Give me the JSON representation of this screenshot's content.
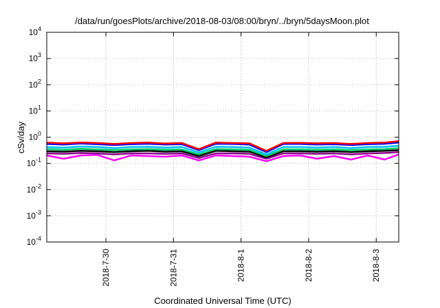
{
  "chart_data": {
    "type": "line",
    "title": "/data/run/goesPlots/archive/2018-08-03/08:00/bryn/../bryn/5daysMoon.plot",
    "xlabel": "Coordinated Universal Time (UTC)",
    "ylabel": "cSv/day",
    "yscale": "log",
    "ylim": [
      0.0001,
      10000
    ],
    "xlim": [
      "2018-07-29T03:00",
      "2018-08-03T08:00"
    ],
    "grid": true,
    "y_ticks": [
      {
        "value": 0.0001,
        "base": "10",
        "exp": "-4"
      },
      {
        "value": 0.001,
        "base": "10",
        "exp": "-3"
      },
      {
        "value": 0.01,
        "base": "10",
        "exp": "-2"
      },
      {
        "value": 0.1,
        "base": "10",
        "exp": "-1"
      },
      {
        "value": 1,
        "base": "10",
        "exp": "0"
      },
      {
        "value": 10,
        "base": "10",
        "exp": "1"
      },
      {
        "value": 100,
        "base": "10",
        "exp": "2"
      },
      {
        "value": 1000,
        "base": "10",
        "exp": "3"
      },
      {
        "value": 10000,
        "base": "10",
        "exp": "4"
      }
    ],
    "x_ticks": [
      {
        "value": "2018-07-30T00:00",
        "label": "2018-7-30"
      },
      {
        "value": "2018-07-31T00:00",
        "label": "2018-7-31"
      },
      {
        "value": "2018-08-01T00:00",
        "label": "2018-8-1"
      },
      {
        "value": "2018-08-02T00:00",
        "label": "2018-8-2"
      },
      {
        "value": "2018-08-03T00:00",
        "label": "2018-8-3"
      }
    ],
    "x": [
      "2018-07-29T03:00",
      "2018-07-29T09:00",
      "2018-07-29T15:00",
      "2018-07-29T21:00",
      "2018-07-30T03:00",
      "2018-07-30T09:00",
      "2018-07-30T15:00",
      "2018-07-30T21:00",
      "2018-07-31T03:00",
      "2018-07-31T09:00",
      "2018-07-31T15:00",
      "2018-07-31T21:00",
      "2018-08-01T03:00",
      "2018-08-01T09:00",
      "2018-08-01T15:00",
      "2018-08-01T21:00",
      "2018-08-02T03:00",
      "2018-08-02T09:00",
      "2018-08-02T15:00",
      "2018-08-02T21:00",
      "2018-08-03T03:00",
      "2018-08-03T08:00"
    ],
    "series": [
      {
        "color": "#ff0000",
        "values": [
          0.62,
          0.58,
          0.63,
          0.6,
          0.55,
          0.6,
          0.62,
          0.57,
          0.6,
          0.35,
          0.62,
          0.6,
          0.58,
          0.3,
          0.6,
          0.61,
          0.58,
          0.6,
          0.55,
          0.6,
          0.62,
          0.7
        ]
      },
      {
        "color": "#0000ff",
        "values": [
          0.55,
          0.52,
          0.57,
          0.54,
          0.5,
          0.54,
          0.56,
          0.52,
          0.54,
          0.32,
          0.56,
          0.55,
          0.52,
          0.27,
          0.55,
          0.55,
          0.52,
          0.54,
          0.5,
          0.54,
          0.56,
          0.62
        ]
      },
      {
        "color": "#00bfff",
        "values": [
          0.42,
          0.4,
          0.44,
          0.42,
          0.38,
          0.42,
          0.43,
          0.4,
          0.42,
          0.26,
          0.43,
          0.42,
          0.4,
          0.22,
          0.42,
          0.42,
          0.4,
          0.42,
          0.38,
          0.42,
          0.43,
          0.47
        ]
      },
      {
        "color": "#00cc66",
        "values": [
          0.35,
          0.33,
          0.36,
          0.34,
          0.32,
          0.34,
          0.35,
          0.33,
          0.34,
          0.22,
          0.35,
          0.34,
          0.33,
          0.19,
          0.34,
          0.34,
          0.33,
          0.34,
          0.32,
          0.34,
          0.35,
          0.38
        ]
      },
      {
        "color": "#000000",
        "values": [
          0.29,
          0.28,
          0.3,
          0.29,
          0.27,
          0.29,
          0.3,
          0.28,
          0.29,
          0.19,
          0.3,
          0.29,
          0.28,
          0.17,
          0.29,
          0.29,
          0.28,
          0.29,
          0.27,
          0.29,
          0.3,
          0.32
        ]
      },
      {
        "color": "#8b008b",
        "values": [
          0.24,
          0.23,
          0.25,
          0.24,
          0.22,
          0.24,
          0.24,
          0.23,
          0.24,
          0.16,
          0.24,
          0.24,
          0.23,
          0.15,
          0.24,
          0.24,
          0.23,
          0.24,
          0.22,
          0.24,
          0.25,
          0.27
        ]
      },
      {
        "color": "#ff00ff",
        "values": [
          0.2,
          0.15,
          0.2,
          0.21,
          0.13,
          0.2,
          0.19,
          0.18,
          0.2,
          0.13,
          0.2,
          0.19,
          0.18,
          0.12,
          0.19,
          0.2,
          0.15,
          0.19,
          0.14,
          0.2,
          0.14,
          0.22
        ]
      }
    ]
  }
}
